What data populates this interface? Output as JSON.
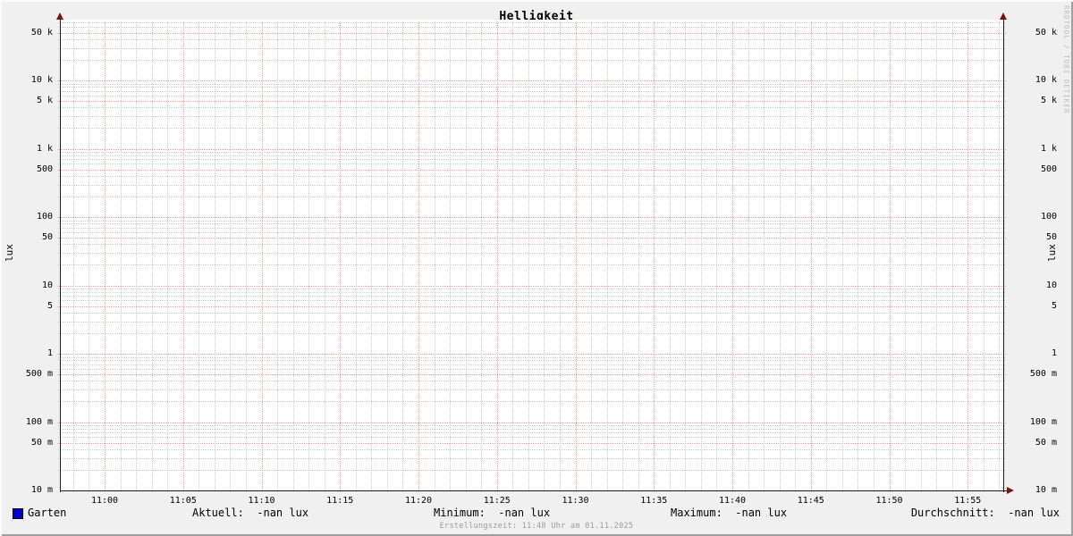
{
  "title": "Helligkeit",
  "chart_data": {
    "type": "line",
    "title": "Helligkeit",
    "y_axis": {
      "unit": "lux",
      "scale": "log",
      "min": 0.01,
      "max": 78000,
      "ticks": [
        {
          "label": "50 k",
          "value": 50000
        },
        {
          "label": "10 k",
          "value": 10000
        },
        {
          "label": "5 k",
          "value": 5000
        },
        {
          "label": "1 k",
          "value": 1000
        },
        {
          "label": "500",
          "value": 500
        },
        {
          "label": "100",
          "value": 100
        },
        {
          "label": "50",
          "value": 50
        },
        {
          "label": "10",
          "value": 10
        },
        {
          "label": "5",
          "value": 5
        },
        {
          "label": "1",
          "value": 1
        },
        {
          "label": "500 m",
          "value": 0.5
        },
        {
          "label": "100 m",
          "value": 0.1
        },
        {
          "label": "50 m",
          "value": 0.05
        },
        {
          "label": "10 m",
          "value": 0.01
        }
      ]
    },
    "x_axis": {
      "ticks": [
        "11:00",
        "11:05",
        "11:10",
        "11:15",
        "11:20",
        "11:25",
        "11:30",
        "11:35",
        "11:40",
        "11:45",
        "11:50",
        "11:55"
      ],
      "minor_step_minutes": 1,
      "major_step_minutes": 5,
      "grid_on": true
    },
    "series": [
      {
        "name": "Garten",
        "color": "#0000c8",
        "values": []
      }
    ],
    "stats": [
      {
        "name": "aktuell",
        "text": "Aktuell:  -nan lux"
      },
      {
        "name": "minimum",
        "text": "Minimum:  -nan lux"
      },
      {
        "name": "maximum",
        "text": "Maximum:  -nan lux"
      },
      {
        "name": "durchschnitt",
        "text": "Durchschnitt:  -nan lux"
      }
    ],
    "footer": "Erstellungszeit: 11:48 Uhr am 01.11.2025",
    "watermark": "RRDTOOL / TOBI OETIKER",
    "colors": {
      "background": "#f0f0f0",
      "canvas": "#ffffff",
      "major_grid": "#efa0a0",
      "minor_grid": "#cdcdcd",
      "arrow": "#7a1414",
      "series_garten": "#0000c8"
    }
  }
}
